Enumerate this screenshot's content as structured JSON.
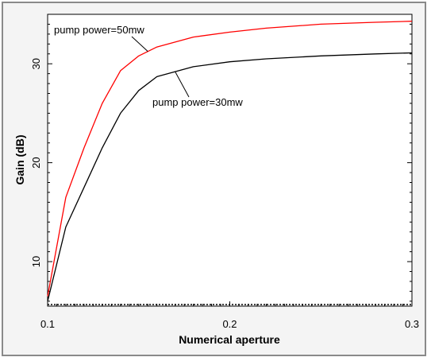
{
  "chart_data": {
    "type": "line",
    "title": "",
    "xlabel": "Numerical aperture",
    "ylabel": "Gain  (dB)",
    "xlim": [
      0.1,
      0.3
    ],
    "ylim": [
      5.5,
      35
    ],
    "x_ticks": [
      0.1,
      0.2,
      0.3
    ],
    "x_tick_labels": [
      "0.1",
      "0.2",
      "0.3"
    ],
    "y_ticks": [
      10,
      20,
      30
    ],
    "y_tick_labels": [
      "10",
      "20",
      "30"
    ],
    "grid": false,
    "colors": {
      "pump_50mw": "#ff0000",
      "pump_30mw": "#000000"
    },
    "series": [
      {
        "name": "pump power=50mw",
        "color": "#ff0000",
        "x": [
          0.1,
          0.11,
          0.12,
          0.13,
          0.14,
          0.15,
          0.16,
          0.18,
          0.2,
          0.22,
          0.25,
          0.28,
          0.3
        ],
        "y": [
          6.5,
          16.5,
          21.5,
          26.0,
          29.3,
          30.8,
          31.7,
          32.7,
          33.2,
          33.6,
          34.0,
          34.2,
          34.3
        ]
      },
      {
        "name": "pump power=30mw",
        "color": "#000000",
        "x": [
          0.1,
          0.11,
          0.12,
          0.13,
          0.14,
          0.15,
          0.16,
          0.18,
          0.2,
          0.22,
          0.25,
          0.28,
          0.3
        ],
        "y": [
          6.0,
          13.5,
          17.5,
          21.5,
          25.0,
          27.3,
          28.7,
          29.7,
          30.2,
          30.5,
          30.8,
          31.0,
          31.1
        ]
      }
    ],
    "annotations": [
      {
        "text": "pump power=50mw",
        "series": "pump power=50mw",
        "at_x": 0.155
      },
      {
        "text": "pump power=30mw",
        "series": "pump power=30mw",
        "at_x": 0.17
      }
    ]
  }
}
